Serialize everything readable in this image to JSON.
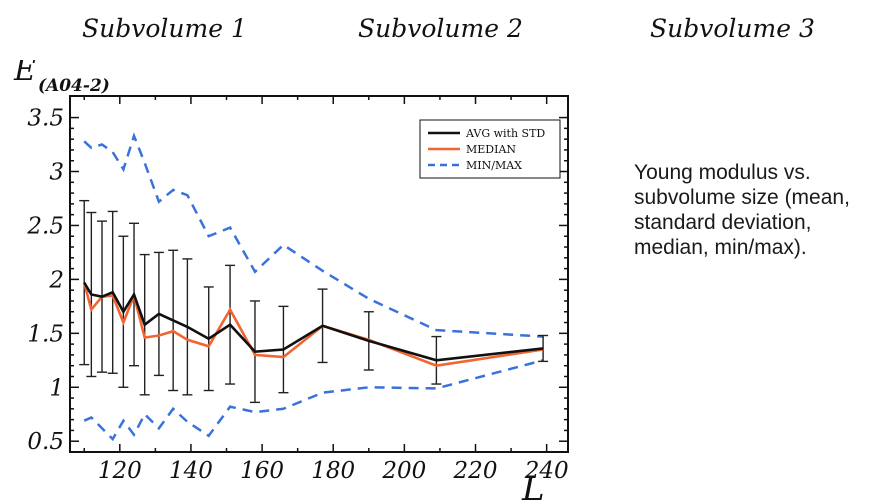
{
  "header": {
    "titles": [
      "Subvolume 1",
      "Subvolume 2",
      "Subvolume 3"
    ]
  },
  "description": "Young modulus vs. subvolume size (mean, standard deviation, median, min/max).",
  "chart_data": {
    "type": "line",
    "ylabel": "E",
    "ylabel_sub": "(A04-2)",
    "xlabel": "L",
    "xlim": [
      106,
      246
    ],
    "ylim": [
      0.4,
      3.7
    ],
    "xticks": [
      120,
      140,
      160,
      180,
      200,
      220,
      240
    ],
    "yticks": [
      0.5,
      1,
      1.5,
      2,
      2.5,
      3,
      3.5
    ],
    "ytick_labels": [
      "0.5",
      "1",
      "1.5",
      "2",
      "2.5",
      "3",
      "3.5"
    ],
    "legend_position": "top-right",
    "grid": false,
    "colors": {
      "avg": "#111111",
      "median": "#f26430",
      "minmax": "#3a72dc"
    },
    "series": [
      {
        "name": "AVG with STD",
        "style": "solid",
        "color": "#111111",
        "x": [
          110,
          112,
          115,
          118,
          121,
          124,
          127,
          131,
          135,
          139,
          145,
          151,
          158,
          166,
          177,
          190,
          209,
          239
        ],
        "y": [
          1.97,
          1.86,
          1.84,
          1.88,
          1.7,
          1.86,
          1.58,
          1.68,
          1.62,
          1.56,
          1.45,
          1.58,
          1.33,
          1.35,
          1.57,
          1.43,
          1.25,
          1.36
        ],
        "std": [
          0.76,
          0.76,
          0.7,
          0.75,
          0.7,
          0.66,
          0.65,
          0.57,
          0.65,
          0.63,
          0.48,
          0.55,
          0.47,
          0.4,
          0.34,
          0.27,
          0.22,
          0.12
        ]
      },
      {
        "name": "MEDIAN",
        "style": "solid",
        "color": "#f26430",
        "x": [
          110,
          112,
          115,
          118,
          121,
          124,
          127,
          131,
          135,
          139,
          145,
          151,
          158,
          166,
          177,
          190,
          209,
          239
        ],
        "y": [
          1.97,
          1.72,
          1.84,
          1.85,
          1.6,
          1.85,
          1.46,
          1.48,
          1.52,
          1.44,
          1.38,
          1.72,
          1.3,
          1.28,
          1.57,
          1.44,
          1.2,
          1.35
        ]
      },
      {
        "name": "MIN/MAX",
        "style": "dashed",
        "color": "#3a72dc",
        "x": [
          110,
          112,
          115,
          118,
          121,
          124,
          127,
          131,
          135,
          139,
          145,
          151,
          158,
          166,
          177,
          190,
          209,
          239
        ],
        "y": [
          3.28,
          3.22,
          3.25,
          3.18,
          3.02,
          3.33,
          3.08,
          2.72,
          2.83,
          2.78,
          2.4,
          2.48,
          2.07,
          2.32,
          2.08,
          1.82,
          1.53,
          1.47
        ]
      },
      {
        "name": "",
        "style": "dashed",
        "color": "#3a72dc",
        "x": [
          110,
          112,
          115,
          118,
          121,
          124,
          127,
          131,
          135,
          139,
          145,
          151,
          158,
          166,
          177,
          190,
          209,
          239
        ],
        "y": [
          0.69,
          0.72,
          0.62,
          0.52,
          0.69,
          0.56,
          0.75,
          0.62,
          0.8,
          0.68,
          0.55,
          0.82,
          0.77,
          0.8,
          0.95,
          1.0,
          0.99,
          1.25
        ]
      }
    ]
  }
}
